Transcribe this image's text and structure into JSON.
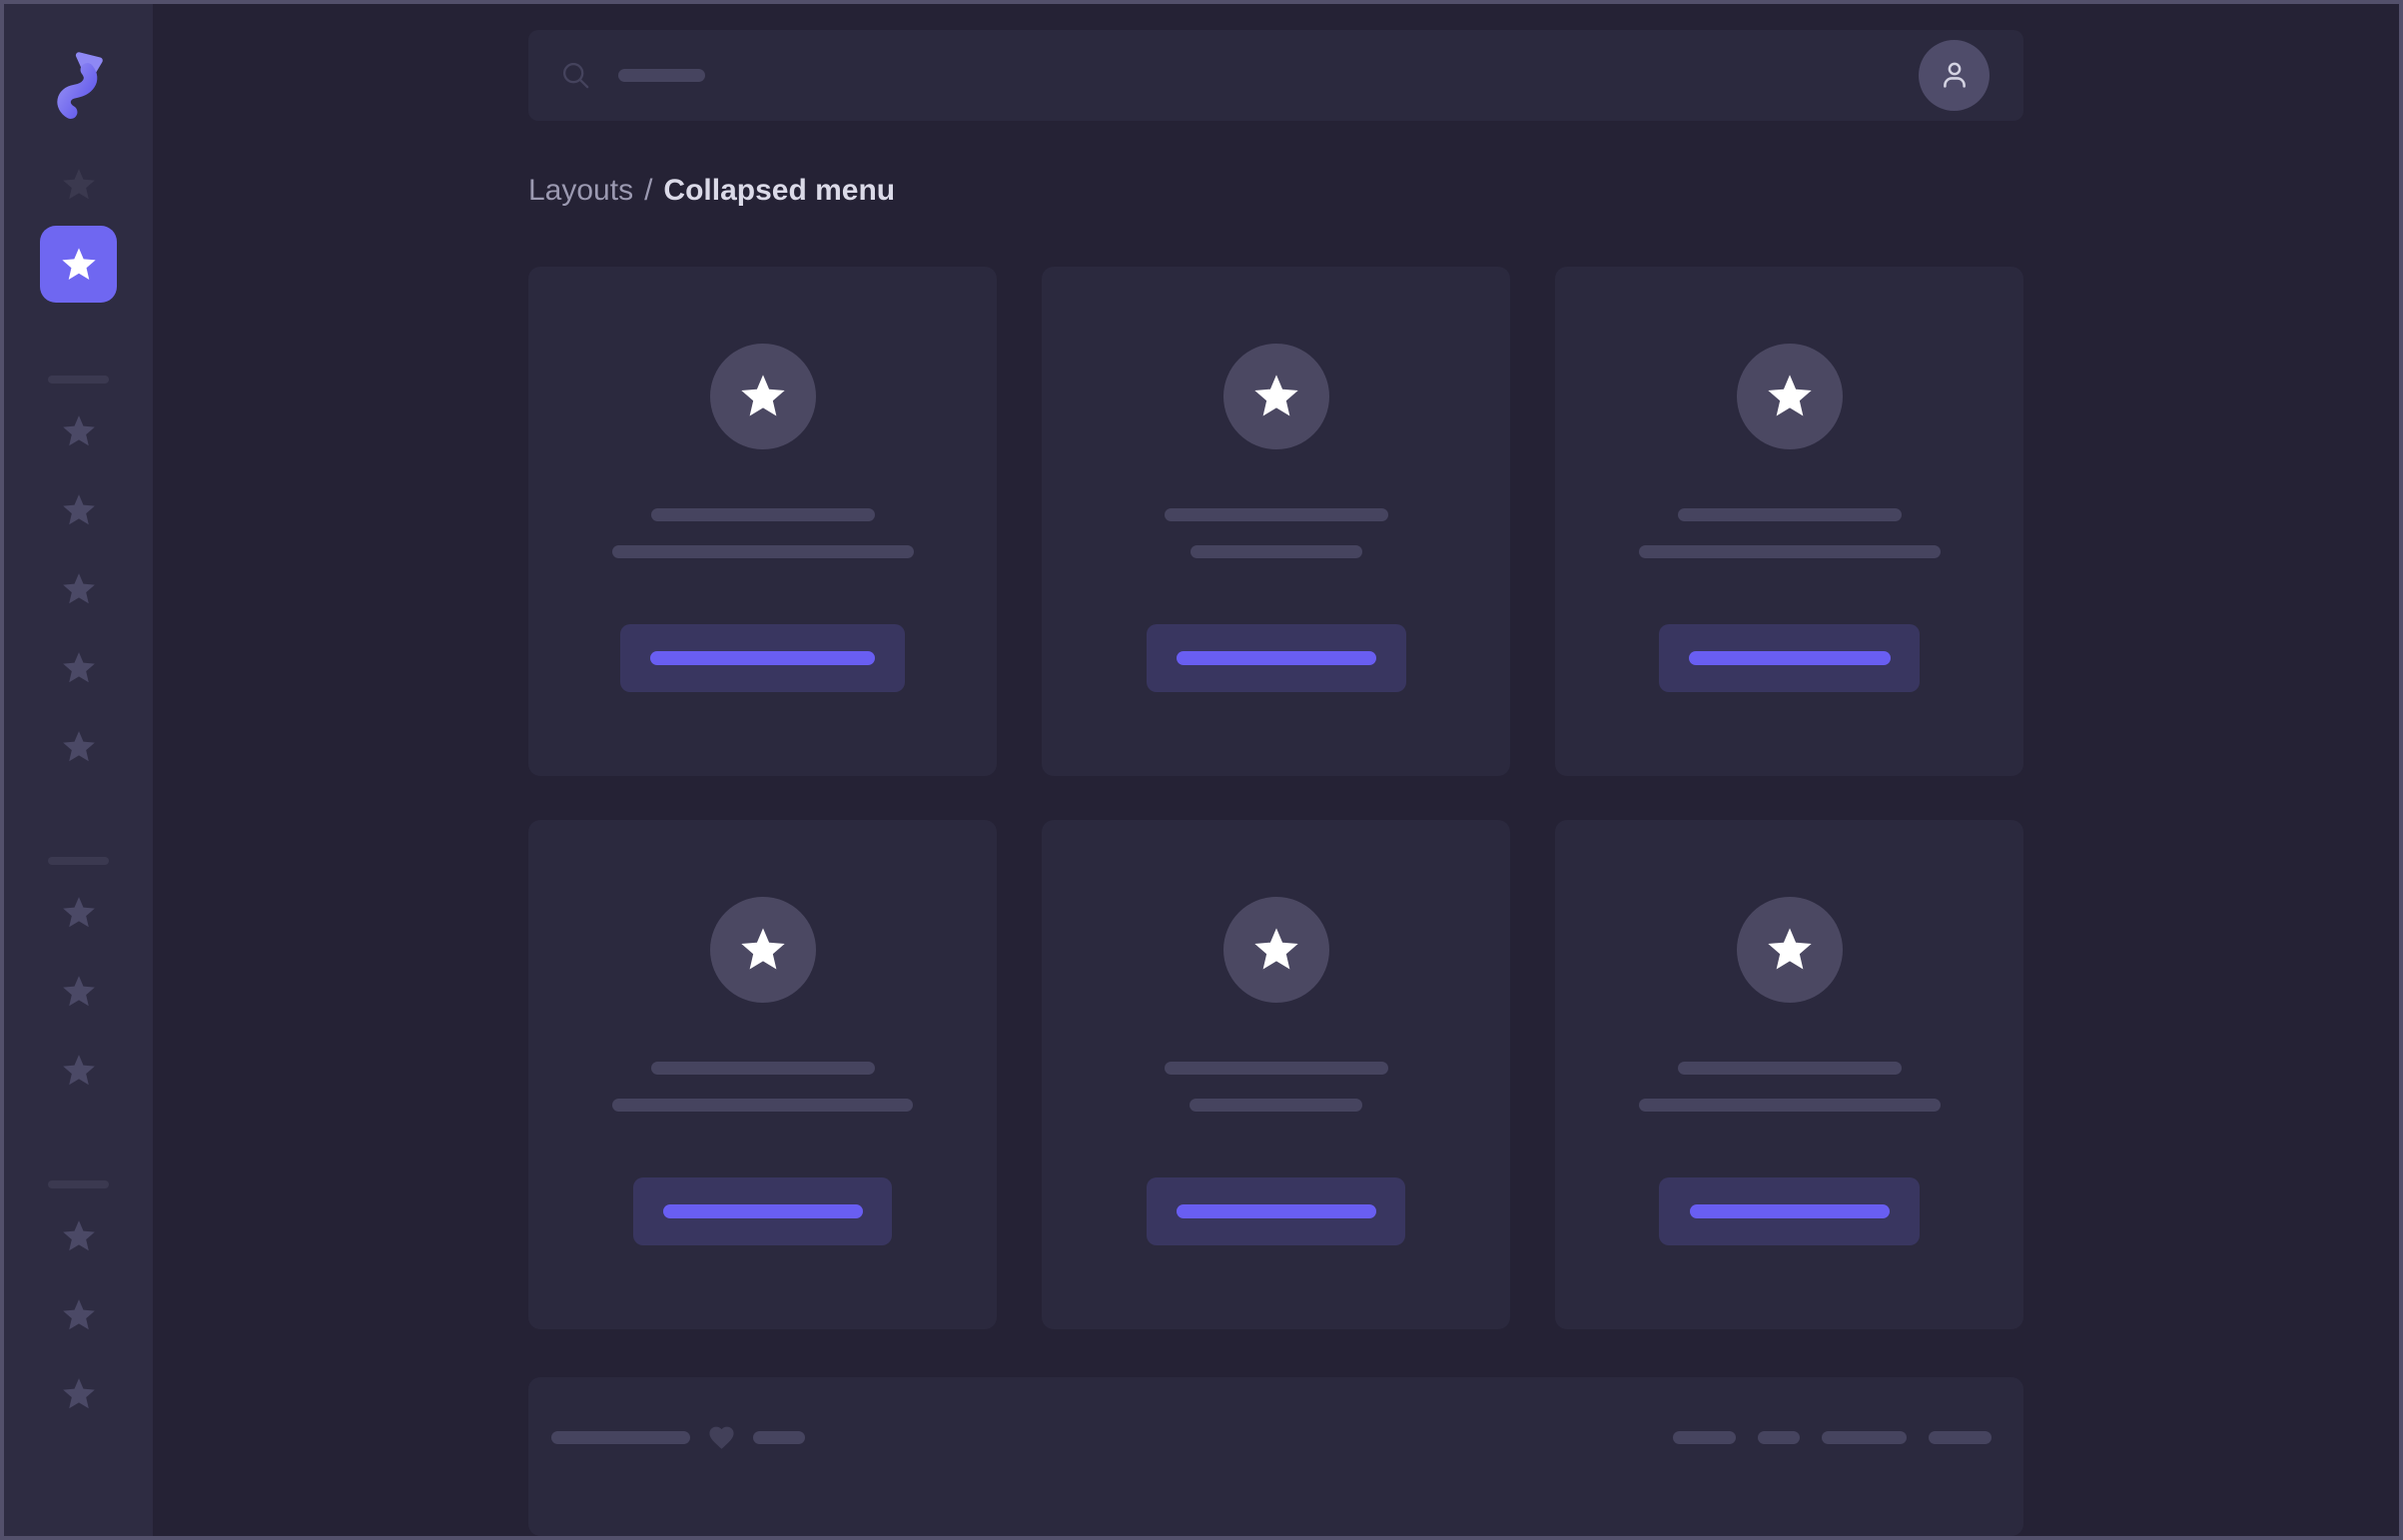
{
  "colors": {
    "accent": "#6F67F1",
    "button_line": "#695EF2",
    "panel_background": "#2B293E",
    "sidebar_background": "#2E2C42",
    "main_background": "#252235",
    "screen_border": "#53506B"
  },
  "sidebar": {
    "logo_icon": "shuffle-logo",
    "top_items": [
      {
        "icon": "star-icon",
        "state": "dimmed"
      },
      {
        "icon": "star-icon",
        "state": "active"
      }
    ],
    "groups": [
      {
        "items": 5
      },
      {
        "items": 3
      },
      {
        "items": 3
      }
    ]
  },
  "header": {
    "search": {
      "icon": "search-icon",
      "placeholder_bar_width": 87
    },
    "user": {
      "icon": "user-icon"
    }
  },
  "breadcrumb": {
    "section": "Layouts",
    "separator": "/",
    "current": "Collapsed menu"
  },
  "cards": [
    {
      "icon": "star-icon",
      "line1_width": 224,
      "line2_width": 302,
      "button_width": 285,
      "button_line_width": 225
    },
    {
      "icon": "star-icon",
      "line1_width": 224,
      "line2_width": 172,
      "button_width": 260,
      "button_line_width": 200
    },
    {
      "icon": "star-icon",
      "line1_width": 224,
      "line2_width": 302,
      "button_width": 261,
      "button_line_width": 202
    },
    {
      "icon": "star-icon",
      "line1_width": 224,
      "line2_width": 301,
      "button_width": 259,
      "button_line_width": 200
    },
    {
      "icon": "star-icon",
      "line1_width": 224,
      "line2_width": 173,
      "button_width": 259,
      "button_line_width": 200
    },
    {
      "icon": "star-icon",
      "line1_width": 224,
      "line2_width": 302,
      "button_width": 261,
      "button_line_width": 200
    }
  ],
  "footer": {
    "left_bars": [
      139,
      52
    ],
    "heart_icon": "heart-icon",
    "right_bars": [
      63,
      42,
      85,
      63
    ]
  }
}
